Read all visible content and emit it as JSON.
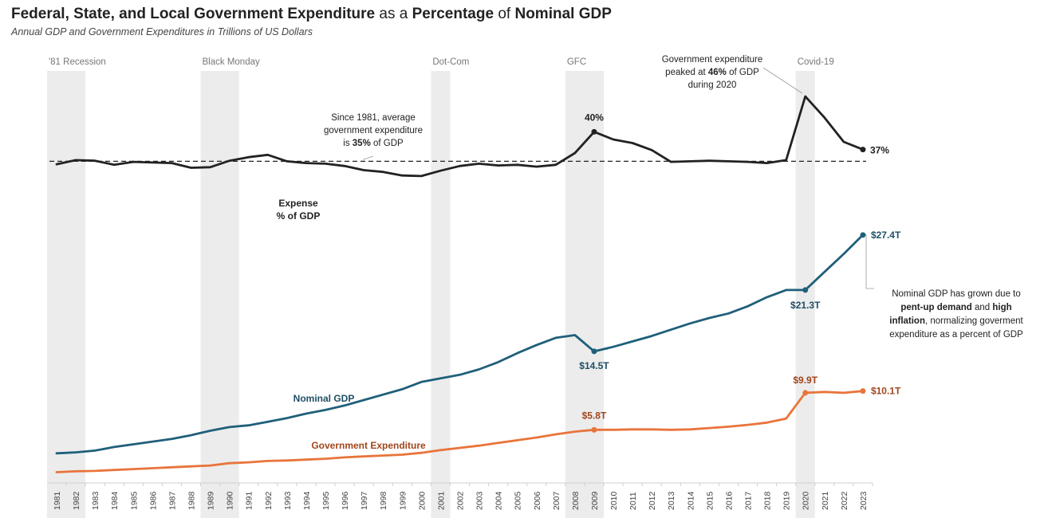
{
  "title_parts": [
    {
      "text": "Federal, State, and Local Government Expenditure",
      "bold": true
    },
    {
      "text": " as a ",
      "bold": false
    },
    {
      "text": "Percentage",
      "bold": true
    },
    {
      "text": " of ",
      "bold": false
    },
    {
      "text": "Nominal GDP",
      "bold": true
    }
  ],
  "subtitle": "Annual GDP and Government Expenditures in Trillions of US Dollars",
  "colors": {
    "expense_pct": "#222222",
    "nominal_gdp": "#1f5f7a",
    "government_expenditure": "#e8743b",
    "gov_label": "#a0461c",
    "gdp_label": "#1f4e66",
    "recession_band": "#ececec",
    "average_line": "#222222"
  },
  "chart_data": {
    "type": "line",
    "x": [
      1981,
      1982,
      1983,
      1984,
      1985,
      1986,
      1987,
      1988,
      1989,
      1990,
      1991,
      1992,
      1993,
      1994,
      1995,
      1996,
      1997,
      1998,
      1999,
      2000,
      2001,
      2002,
      2003,
      2004,
      2005,
      2006,
      2007,
      2008,
      2009,
      2010,
      2011,
      2012,
      2013,
      2014,
      2015,
      2016,
      2017,
      2018,
      2019,
      2020,
      2021,
      2022,
      2023
    ],
    "x_tick_labels": [
      "1981",
      "1982",
      "1983",
      "1984",
      "1985",
      "1986",
      "1987",
      "1988",
      "1989",
      "1990",
      "1991",
      "1992",
      "1993",
      "1994",
      "1995",
      "1996",
      "1997",
      "1998",
      "1999",
      "2000",
      "2001",
      "2002",
      "2003",
      "2004",
      "2005",
      "2006",
      "2007",
      "2008",
      "2009",
      "2010",
      "2011",
      "2012",
      "2013",
      "2014",
      "2015",
      "2016",
      "2017",
      "2018",
      "2019",
      "2020",
      "2021",
      "2022",
      "2023"
    ],
    "recessions": [
      {
        "label": "'81 Recession",
        "start": 1981,
        "end": 1982
      },
      {
        "label": "Black Monday",
        "start": 1989,
        "end": 1990
      },
      {
        "label": "Dot-Com",
        "start": 2001,
        "end": 2001
      },
      {
        "label": "GFC",
        "start": 2008,
        "end": 2009
      },
      {
        "label": "Covid-19",
        "start": 2020,
        "end": 2020
      }
    ],
    "average_expense_pct": 35,
    "series": [
      {
        "key": "expense_pct",
        "label_lines": [
          "Expense",
          "% of GDP"
        ],
        "unit": "% of GDP",
        "values": [
          34.5,
          35.2,
          35.1,
          34.4,
          34.9,
          34.8,
          34.7,
          33.9,
          34.0,
          35.1,
          35.7,
          36.1,
          35.0,
          34.7,
          34.6,
          34.2,
          33.5,
          33.2,
          32.6,
          32.5,
          33.4,
          34.2,
          34.6,
          34.3,
          34.4,
          34.1,
          34.4,
          36.4,
          40.0,
          38.7,
          38.1,
          36.9,
          34.9,
          35.0,
          35.1,
          35.0,
          34.9,
          34.7,
          35.2,
          46.0,
          42.4,
          38.3,
          37.0
        ]
      },
      {
        "key": "nominal_gdp",
        "label": "Nominal GDP",
        "unit": "Trillions of US Dollars",
        "values": [
          3.2,
          3.3,
          3.5,
          3.9,
          4.2,
          4.5,
          4.8,
          5.2,
          5.7,
          6.1,
          6.3,
          6.7,
          7.1,
          7.6,
          8.0,
          8.5,
          9.1,
          9.7,
          10.3,
          11.1,
          11.5,
          11.9,
          12.5,
          13.3,
          14.3,
          15.2,
          16.0,
          16.3,
          14.5,
          15.0,
          15.6,
          16.2,
          16.9,
          17.6,
          18.2,
          18.7,
          19.5,
          20.5,
          21.3,
          21.3,
          23.3,
          25.3,
          27.4
        ]
      },
      {
        "key": "government_expenditure",
        "label": "Government Expenditure",
        "unit": "Trillions of US Dollars",
        "values": [
          1.1,
          1.2,
          1.25,
          1.35,
          1.45,
          1.55,
          1.65,
          1.75,
          1.85,
          2.1,
          2.2,
          2.35,
          2.4,
          2.5,
          2.6,
          2.75,
          2.85,
          2.95,
          3.05,
          3.25,
          3.55,
          3.8,
          4.05,
          4.35,
          4.65,
          4.95,
          5.3,
          5.6,
          5.8,
          5.8,
          5.85,
          5.85,
          5.8,
          5.85,
          6.0,
          6.15,
          6.35,
          6.6,
          7.05,
          9.9,
          10.0,
          9.9,
          10.1
        ]
      }
    ],
    "point_labels": [
      {
        "series": "expense_pct",
        "x": 2009,
        "text": "40%"
      },
      {
        "series": "expense_pct",
        "x": 2023,
        "text": "37%"
      },
      {
        "series": "nominal_gdp",
        "x": 2009,
        "text": "$14.5T"
      },
      {
        "series": "nominal_gdp",
        "x": 2020,
        "text": "$21.3T"
      },
      {
        "series": "nominal_gdp",
        "x": 2023,
        "text": "$27.4T"
      },
      {
        "series": "government_expenditure",
        "x": 2009,
        "text": "$5.8T"
      },
      {
        "series": "government_expenditure",
        "x": 2020,
        "text": "$9.9T"
      },
      {
        "series": "government_expenditure",
        "x": 2023,
        "text": "$10.1T"
      }
    ],
    "annotations": {
      "average": [
        [
          {
            "t": "Since 1981, average",
            "b": false
          }
        ],
        [
          {
            "t": "government expenditure",
            "b": false
          }
        ],
        [
          {
            "t": "is ",
            "b": false
          },
          {
            "t": "35%",
            "b": true
          },
          {
            "t": " of GDP",
            "b": false
          }
        ]
      ],
      "peak": [
        [
          {
            "t": "Government expenditure",
            "b": false
          }
        ],
        [
          {
            "t": "peaked at ",
            "b": false
          },
          {
            "t": "46%",
            "b": true
          },
          {
            "t": " of GDP",
            "b": false
          }
        ],
        [
          {
            "t": "during 2020",
            "b": false
          }
        ]
      ],
      "gdp_growth": [
        [
          {
            "t": "Nominal GDP has grown due to",
            "b": false
          }
        ],
        [
          {
            "t": "pent-up demand",
            "b": true
          },
          {
            "t": " and ",
            "b": false
          },
          {
            "t": "high",
            "b": true
          }
        ],
        [
          {
            "t": "inflation",
            "b": true
          },
          {
            "t": ", normalizing goverment",
            "b": false
          }
        ],
        [
          {
            "t": "expenditure as a percent of GDP",
            "b": false
          }
        ]
      ]
    }
  }
}
